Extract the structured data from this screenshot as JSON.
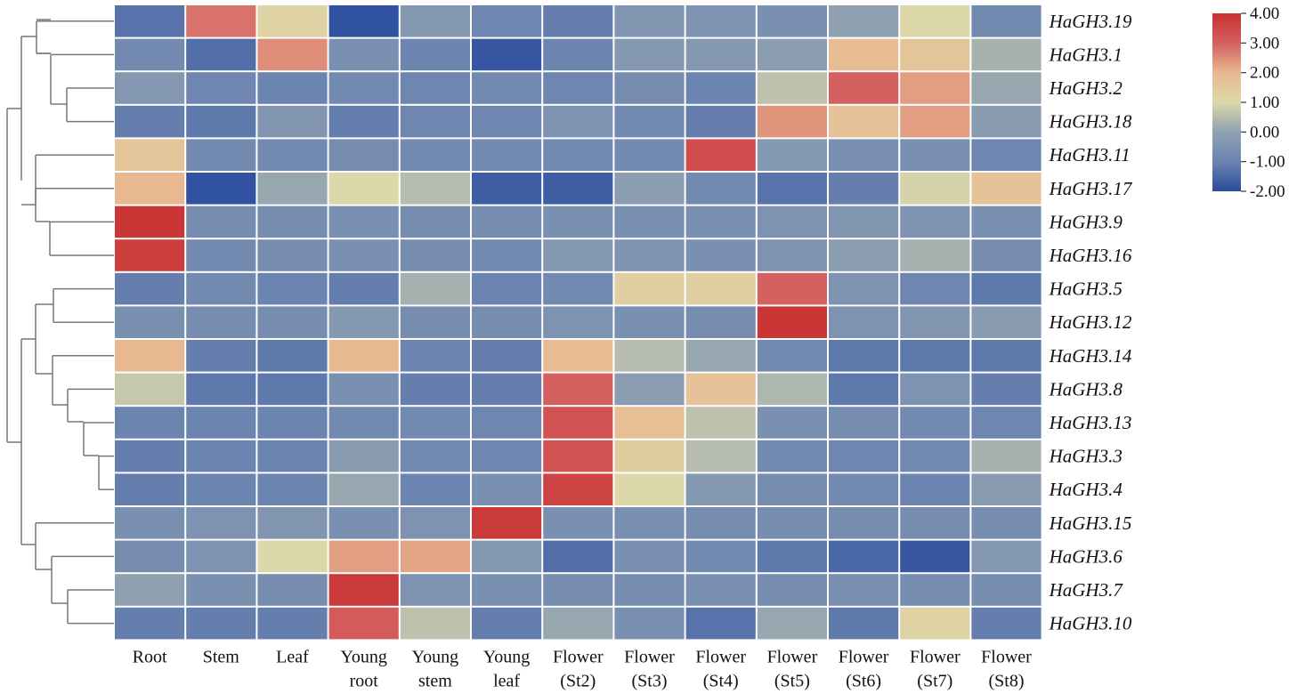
{
  "chart_data": {
    "type": "heatmap",
    "title": "",
    "rows": [
      "HaGH3.19",
      "HaGH3.1",
      "HaGH3.2",
      "HaGH3.18",
      "HaGH3.11",
      "HaGH3.17",
      "HaGH3.9",
      "HaGH3.16",
      "HaGH3.5",
      "HaGH3.12",
      "HaGH3.14",
      "HaGH3.8",
      "HaGH3.13",
      "HaGH3.3",
      "HaGH3.4",
      "HaGH3.15",
      "HaGH3.6",
      "HaGH3.7",
      "HaGH3.10"
    ],
    "columns": [
      [
        "Root"
      ],
      [
        "Stem"
      ],
      [
        "Leaf"
      ],
      [
        "Young",
        "root"
      ],
      [
        "Young",
        "stem"
      ],
      [
        "Young",
        "leaf"
      ],
      [
        "Flower",
        "(St2)"
      ],
      [
        "Flower",
        "(St3)"
      ],
      [
        "Flower",
        "(St4)"
      ],
      [
        "Flower",
        "(St5)"
      ],
      [
        "Flower",
        "(St6)"
      ],
      [
        "Flower",
        "(St7)"
      ],
      [
        "Flower",
        "(St8)"
      ]
    ],
    "values": [
      [
        -1.3,
        2.8,
        1.2,
        -1.9,
        -0.3,
        -0.9,
        -1.1,
        -0.4,
        -0.5,
        -0.6,
        0.0,
        1.0,
        -0.8
      ],
      [
        -0.8,
        -1.4,
        2.5,
        -0.6,
        -1.0,
        -1.8,
        -1.0,
        -0.3,
        -0.3,
        -0.1,
        1.9,
        1.6,
        0.3
      ],
      [
        -0.3,
        -0.9,
        -1.0,
        -0.8,
        -0.9,
        -0.8,
        -0.9,
        -0.7,
        -1.0,
        0.6,
        3.0,
        2.3,
        0.1
      ],
      [
        -1.1,
        -1.2,
        -0.4,
        -1.1,
        -0.9,
        -0.9,
        -0.5,
        -0.8,
        -1.1,
        2.4,
        1.7,
        2.3,
        -0.2
      ],
      [
        1.6,
        -0.8,
        -0.8,
        -0.7,
        -0.8,
        -0.8,
        -0.8,
        -0.8,
        3.4,
        -0.3,
        -0.6,
        -0.6,
        -0.9
      ],
      [
        2.0,
        -1.9,
        0.1,
        1.0,
        0.5,
        -1.7,
        -1.7,
        -0.1,
        -0.8,
        -1.3,
        -1.1,
        0.9,
        1.7
      ],
      [
        3.9,
        -0.7,
        -0.7,
        -0.6,
        -0.7,
        -0.7,
        -0.6,
        -0.6,
        -0.6,
        -0.5,
        -0.4,
        -0.5,
        -0.6
      ],
      [
        3.7,
        -0.8,
        -0.7,
        -0.6,
        -0.7,
        -0.8,
        -0.3,
        -0.5,
        -0.6,
        -0.5,
        -0.1,
        0.3,
        -0.7
      ],
      [
        -1.1,
        -0.8,
        -1.0,
        -1.1,
        0.3,
        -1.0,
        -0.8,
        1.3,
        1.3,
        3.0,
        -0.5,
        -0.9,
        -1.2
      ],
      [
        -0.6,
        -0.7,
        -0.7,
        -0.3,
        -0.7,
        -0.7,
        -0.5,
        -0.6,
        -0.7,
        3.9,
        -0.5,
        -0.4,
        -0.2
      ],
      [
        2.0,
        -1.1,
        -1.2,
        2.0,
        -1.0,
        -1.1,
        1.9,
        0.5,
        0.1,
        -0.8,
        -1.2,
        -1.2,
        -1.2
      ],
      [
        0.7,
        -1.2,
        -1.2,
        -0.6,
        -1.1,
        -1.1,
        3.0,
        -0.1,
        1.7,
        0.4,
        -1.2,
        -0.5,
        -1.1
      ],
      [
        -1.0,
        -1.0,
        -1.0,
        -0.8,
        -0.8,
        -0.9,
        3.3,
        1.8,
        0.6,
        -0.6,
        -0.7,
        -0.8,
        -0.9
      ],
      [
        -1.1,
        -1.0,
        -1.0,
        -0.2,
        -0.8,
        -0.9,
        3.3,
        1.4,
        0.5,
        -0.8,
        -0.9,
        -0.8,
        0.3
      ],
      [
        -1.1,
        -1.0,
        -1.0,
        0.1,
        -1.0,
        -0.6,
        3.6,
        1.0,
        -0.3,
        -0.7,
        -0.8,
        -1.0,
        -0.2
      ],
      [
        -0.6,
        -0.5,
        -0.4,
        -0.6,
        -0.5,
        3.8,
        -0.6,
        -0.6,
        -0.7,
        -0.7,
        -0.7,
        -0.7,
        -0.7
      ],
      [
        -0.7,
        -0.5,
        1.0,
        2.3,
        2.2,
        -0.3,
        -1.4,
        -0.6,
        -0.8,
        -1.2,
        -1.5,
        -1.8,
        -0.3
      ],
      [
        0.0,
        -0.6,
        -0.7,
        3.8,
        -0.5,
        -0.6,
        -0.7,
        -0.7,
        -0.6,
        -0.7,
        -0.6,
        -0.7,
        -0.7
      ],
      [
        -1.1,
        -1.1,
        -1.1,
        3.1,
        0.6,
        -1.1,
        0.1,
        -0.6,
        -1.3,
        0.1,
        -1.2,
        1.2,
        -1.1
      ]
    ],
    "colorbar": {
      "min": -2.0,
      "max": 4.0,
      "ticks": [
        "4.00",
        "3.00",
        "2.00",
        "1.00",
        "0.00",
        "-1.00",
        "-2.00"
      ],
      "tick_values": [
        4,
        3,
        2,
        1,
        0,
        -1,
        -2
      ],
      "colors": [
        "#2b4c9e",
        "#6b84b0",
        "#8fa1b1",
        "#ddd8aa",
        "#e8b990",
        "#d46060",
        "#c93030"
      ]
    },
    "dendrogram": "row clustering tree on left side"
  }
}
